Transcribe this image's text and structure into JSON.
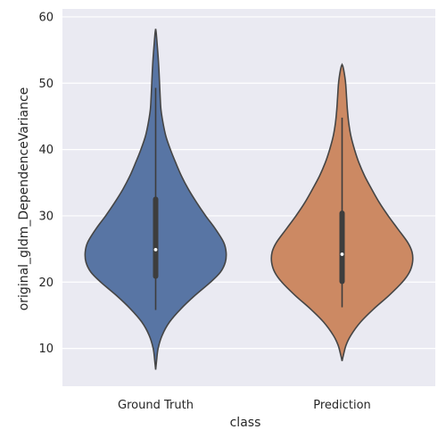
{
  "chart_data": {
    "type": "violin",
    "xlabel": "class",
    "ylabel": "original_gldm_DependenceVariance",
    "ylim": [
      4.3,
      61.2
    ],
    "yticks": [
      10,
      20,
      30,
      40,
      50,
      60
    ],
    "grid": true,
    "background_color": "#EAEAF2",
    "categories": [
      "Ground Truth",
      "Prediction"
    ],
    "series": [
      {
        "category": "Ground Truth",
        "color": "#5875A4",
        "min": 15.8,
        "q1": 20.9,
        "median": 24.9,
        "q3": 32.5,
        "max": 49.3,
        "kde_min": 6.8,
        "kde_max": 58.2,
        "density": [
          [
            6.8,
            0.0
          ],
          [
            8,
            0.2
          ],
          [
            10,
            0.6
          ],
          [
            12,
            1.6
          ],
          [
            14,
            3.4
          ],
          [
            16,
            6.2
          ],
          [
            18,
            9.6
          ],
          [
            20,
            13.4
          ],
          [
            21.5,
            15.8
          ],
          [
            23,
            17.0
          ],
          [
            24.5,
            17.2
          ],
          [
            26,
            16.6
          ],
          [
            28,
            14.6
          ],
          [
            30,
            12.2
          ],
          [
            32,
            10.0
          ],
          [
            34,
            8.0
          ],
          [
            36,
            6.3
          ],
          [
            38,
            4.9
          ],
          [
            40,
            3.6
          ],
          [
            42,
            2.5
          ],
          [
            44,
            1.8
          ],
          [
            46,
            1.3
          ],
          [
            48,
            1.1
          ],
          [
            50,
            0.95
          ],
          [
            52,
            0.8
          ],
          [
            54,
            0.6
          ],
          [
            56,
            0.35
          ],
          [
            57.5,
            0.15
          ],
          [
            58.2,
            0.0
          ]
        ]
      },
      {
        "category": "Prediction",
        "color": "#CC8963",
        "min": 16.2,
        "q1": 20.1,
        "median": 24.2,
        "q3": 30.4,
        "max": 44.8,
        "kde_min": 8.1,
        "kde_max": 52.8,
        "density": [
          [
            8.1,
            0.0
          ],
          [
            9,
            0.3
          ],
          [
            10.5,
            0.9
          ],
          [
            12,
            2.0
          ],
          [
            14,
            4.2
          ],
          [
            16,
            7.2
          ],
          [
            18,
            10.6
          ],
          [
            20,
            13.6
          ],
          [
            21.5,
            15.2
          ],
          [
            23,
            15.9
          ],
          [
            24.5,
            15.8
          ],
          [
            26,
            14.8
          ],
          [
            28,
            12.6
          ],
          [
            30,
            10.4
          ],
          [
            32,
            8.4
          ],
          [
            34,
            6.7
          ],
          [
            36,
            5.1
          ],
          [
            38,
            3.8
          ],
          [
            40,
            2.8
          ],
          [
            42,
            2.0
          ],
          [
            44,
            1.5
          ],
          [
            46,
            1.2
          ],
          [
            48,
            1.0
          ],
          [
            50,
            0.8
          ],
          [
            51.5,
            0.5
          ],
          [
            52.5,
            0.2
          ],
          [
            52.8,
            0.0
          ]
        ]
      }
    ]
  }
}
